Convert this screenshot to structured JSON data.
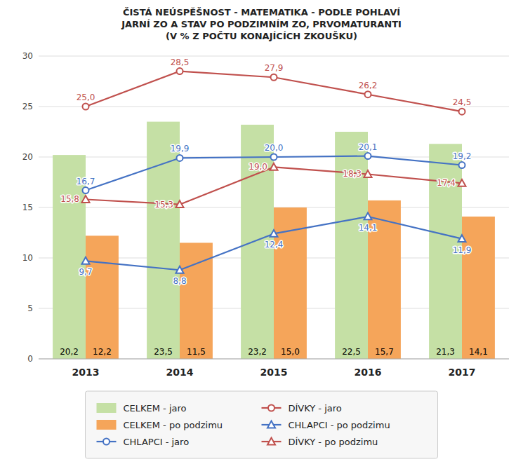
{
  "chart_data": {
    "type": "bar",
    "title": "ČISTÁ NEÚSPĚŠNOST - MATEMATIKA - PODLE POHLAVÍ\nJARNÍ ZO A STAV PO PODZIMNÍM ZO, PRVOMATURANTI\n(V % Z POČTU KONAJÍCÍCH ZKOUŠKU)",
    "categories": [
      "2013",
      "2014",
      "2015",
      "2016",
      "2017"
    ],
    "series": [
      {
        "name": "CELKEM - jaro",
        "type": "bar",
        "color": "#c5e0a5",
        "values": [
          20.2,
          23.5,
          23.2,
          22.5,
          21.3
        ],
        "value_labels": [
          "20,2",
          "23,5",
          "23,2",
          "22,5",
          "21,3"
        ]
      },
      {
        "name": "CELKEM - po podzimu",
        "type": "bar",
        "color": "#f5a55a",
        "values": [
          12.2,
          11.5,
          15.0,
          15.7,
          14.1
        ],
        "value_labels": [
          "12,2",
          "11,5",
          "15,0",
          "15,7",
          "14,1"
        ]
      },
      {
        "name": "CHLAPCI - jaro",
        "type": "line",
        "color": "#4472c4",
        "marker": "circle",
        "values": [
          16.7,
          19.9,
          20.0,
          20.1,
          19.2
        ],
        "value_labels": [
          "16,7",
          "19,9",
          "20,0",
          "20,1",
          "19,2"
        ]
      },
      {
        "name": "DÍVKY - jaro",
        "type": "line",
        "color": "#c0504d",
        "marker": "circle",
        "values": [
          25.0,
          28.5,
          27.9,
          26.2,
          24.5
        ],
        "value_labels": [
          "25,0",
          "28,5",
          "27,9",
          "26,2",
          "24,5"
        ]
      },
      {
        "name": "CHLAPCI - po podzimu",
        "type": "line",
        "color": "#4472c4",
        "marker": "triangle",
        "values": [
          9.7,
          8.8,
          12.4,
          14.1,
          11.9
        ],
        "value_labels": [
          "9,7",
          "8,8",
          "12,4",
          "14,1",
          "11,9"
        ]
      },
      {
        "name": "DÍVKY - po podzimu",
        "type": "line",
        "color": "#c0504d",
        "marker": "triangle",
        "values": [
          15.8,
          15.3,
          19.0,
          18.3,
          17.4
        ],
        "value_labels": [
          "15,8",
          "15,3",
          "19,0",
          "18,3",
          "17,4"
        ]
      }
    ],
    "ylim": [
      0,
      30
    ],
    "yticks": [
      0,
      5,
      10,
      15,
      20,
      25,
      30
    ],
    "grid": true,
    "data_labels": true,
    "legend": "bottom"
  }
}
